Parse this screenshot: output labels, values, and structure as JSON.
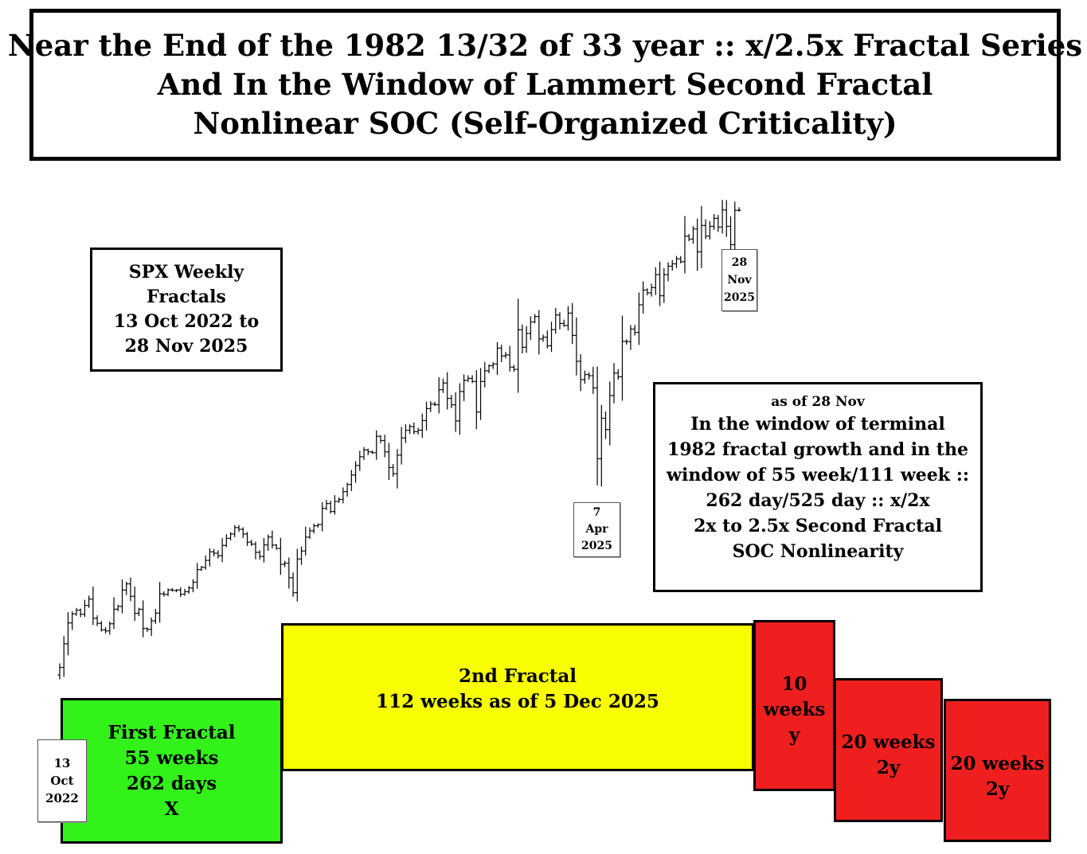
{
  "title": {
    "line1": "Near the End of the 1982 13/32 of 33 year :: x/2.5x Fractal Series",
    "line2": "And In the Window of  Lammert Second Fractal",
    "line3": "Nonlinear SOC  (Self-Organized Criticality)"
  },
  "info_box": {
    "line1": "SPX Weekly",
    "line2": "Fractals",
    "line3": "13 Oct 2022 to",
    "line4": "28 Nov 2025"
  },
  "note_box": {
    "line1": "as of  28 Nov",
    "line2": "In the window of terminal",
    "line3": "1982 fractal growth and in the",
    "line4": "window of 55 week/111 week ::",
    "line5": "262 day/525 day :: x/2x",
    "line6": "2x to 2.5x Second Fractal",
    "line7": "SOC Nonlinearity"
  },
  "date_labels": {
    "start": {
      "day": "13",
      "month": "Oct",
      "year": "2022"
    },
    "low": {
      "day": "7",
      "month": "Apr",
      "year": "2025"
    },
    "end": {
      "day": "28",
      "month": "Nov",
      "year": "2025"
    }
  },
  "fractals": [
    {
      "line1": "First Fractal",
      "line2": "55 weeks",
      "line3": "262 days",
      "line4": "X",
      "color": "#33f21a"
    },
    {
      "line1": "2nd Fractal",
      "line2": "112 weeks as of 5 Dec 2025",
      "color": "#f7ff00"
    },
    {
      "line1": "10",
      "line2": "weeks",
      "line3": "y",
      "color": "#f01f1f"
    },
    {
      "line1": "20 weeks",
      "line2": "2y",
      "color": "#f01f1f"
    },
    {
      "line1": "20 weeks",
      "line2": "2y",
      "color": "#f01f1f"
    }
  ],
  "chart_data": {
    "type": "ohlc",
    "series_name": "SPX Weekly",
    "x_start": "2022-10-13",
    "x_end": "2025-11-28",
    "ylim": [
      3450,
      7100
    ],
    "grid": false,
    "legend": "none",
    "close_values": [
      3583,
      3752,
      3901,
      3965,
      3992,
      3963,
      4026,
      4071,
      3934,
      3898,
      3852,
      3844,
      3895,
      3999,
      4019,
      4136,
      4180,
      4091,
      3970,
      3999,
      3862,
      3855,
      3916,
      3971,
      4109,
      4105,
      4137,
      4133,
      4136,
      4106,
      4124,
      4151,
      4192,
      4282,
      4298,
      4348,
      4409,
      4399,
      4381,
      4455,
      4505,
      4536,
      4582,
      4570,
      4536,
      4478,
      4464,
      4405,
      4376,
      4458,
      4515,
      4457,
      4433,
      4320,
      4328,
      4224,
      4117,
      4358,
      4415,
      4514,
      4559,
      4595,
      4604,
      4719,
      4754,
      4697,
      4769,
      4783,
      4839,
      4890,
      4958,
      5026,
      5088,
      5137,
      5123,
      5117,
      5234,
      5204,
      5123,
      5011,
      4967,
      5100,
      5222,
      5277,
      5304,
      5267,
      5278,
      5347,
      5432,
      5464,
      5460,
      5567,
      5615,
      5505,
      5459,
      5344,
      5554,
      5634,
      5648,
      5626,
      5408,
      5626,
      5702,
      5738,
      5751,
      5864,
      5808,
      5815,
      5728,
      5712,
      5995,
      5870,
      5969,
      6051,
      6090,
      5930,
      5942,
      5881,
      5996,
      6101,
      6040,
      6026,
      6114,
      5955,
      5770,
      5639,
      5675,
      5667,
      5580,
      5074,
      5363,
      5282,
      5525,
      5686,
      5659,
      5912,
      5911,
      6000,
      5976,
      6173,
      6279,
      6259,
      6296,
      6389,
      6238,
      6389,
      6449,
      6466,
      6502,
      6481,
      6664,
      6643,
      6715,
      6552,
      6740,
      6664,
      6734,
      6791,
      6729,
      6851,
      6734,
      6603,
      6849,
      6849
    ]
  }
}
